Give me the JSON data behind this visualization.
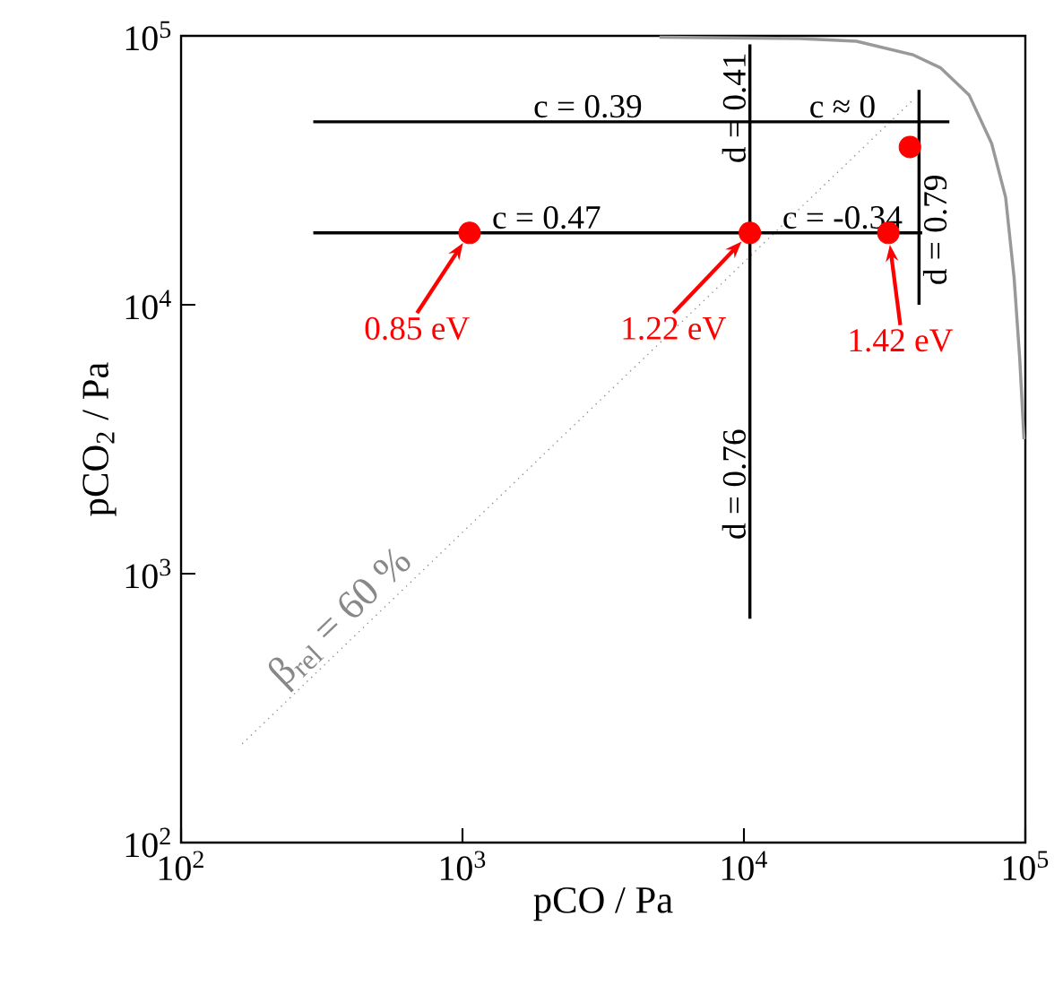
{
  "chart_data": {
    "type": "line",
    "xlabel": "pCO / Pa",
    "ylabel": "pCO$_{2}$ / Pa",
    "log": "xy",
    "xlim": [
      100,
      100000
    ],
    "ylim": [
      100,
      100000
    ],
    "xticks": [
      {
        "value": 100,
        "label": "10$^{2}$"
      },
      {
        "value": 1000,
        "label": "10$^{3}$"
      },
      {
        "value": 10000,
        "label": "10$^{4}$"
      },
      {
        "value": 100000,
        "label": "10$^{5}$"
      }
    ],
    "yticks": [
      {
        "value": 100,
        "label": "10$^{2}$"
      },
      {
        "value": 1000,
        "label": "10$^{3}$"
      },
      {
        "value": 10000,
        "label": "10$^{4}$"
      },
      {
        "value": 100000,
        "label": "10$^{5}$"
      }
    ],
    "series": [
      {
        "color": "#999999",
        "x": [
          5010,
          15800,
          25100,
          39800,
          50100,
          63100,
          75900,
          85100,
          91200,
          95500,
          98900
        ],
        "values": [
          98900,
          97700,
          95500,
          85100,
          75900,
          60300,
          39800,
          25100,
          12600,
          6310,
          3160
        ]
      },
      {
        "color": "#888888",
        "line_style": "dotted",
        "name": "β$_{rel}$ = 60 %",
        "x": [
          165,
          40300
        ],
        "values": [
          233,
          58400
        ]
      },
      {
        "color": "#000000",
        "x": [
          295,
          53700
        ],
        "values": [
          47900,
          47900
        ]
      },
      {
        "color": "#000000",
        "x": [
          295,
          43000
        ],
        "values": [
          18500,
          18500
        ]
      },
      {
        "color": "#000000",
        "x": [
          10500,
          10500
        ],
        "values": [
          93000,
          680
        ]
      },
      {
        "color": "#000000",
        "x": [
          41900,
          41900
        ],
        "values": [
          63000,
          10000
        ]
      },
      {
        "type": "scatter",
        "color": "#ff0000",
        "x": [
          1060,
          10500,
          32600,
          38900
        ],
        "values": [
          18500,
          18500,
          18500,
          38600
        ]
      }
    ],
    "annotations": [
      {
        "text": "c = 0.39",
        "x": 2790,
        "y": 47900
      },
      {
        "text": "c ≈ 0",
        "x": 22400,
        "y": 47900
      },
      {
        "text": "c = 0.47",
        "x": 1990,
        "y": 18500
      },
      {
        "text": "c = -0.34",
        "x": 22400,
        "y": 18500
      },
      {
        "text": "d = 0.41",
        "x": 10500,
        "y": 54000
      },
      {
        "text": "d = 0.76",
        "x": 10500,
        "y": 2150
      },
      {
        "text": "d = 0.79",
        "x": 41900,
        "y": 19000
      },
      {
        "text": "0.85 eV",
        "x": 1060,
        "y": 18500
      },
      {
        "text": "1.22 eV",
        "x": 10500,
        "y": 18500
      },
      {
        "text": "1.42 eV",
        "x": 32600,
        "y": 18500
      }
    ]
  }
}
